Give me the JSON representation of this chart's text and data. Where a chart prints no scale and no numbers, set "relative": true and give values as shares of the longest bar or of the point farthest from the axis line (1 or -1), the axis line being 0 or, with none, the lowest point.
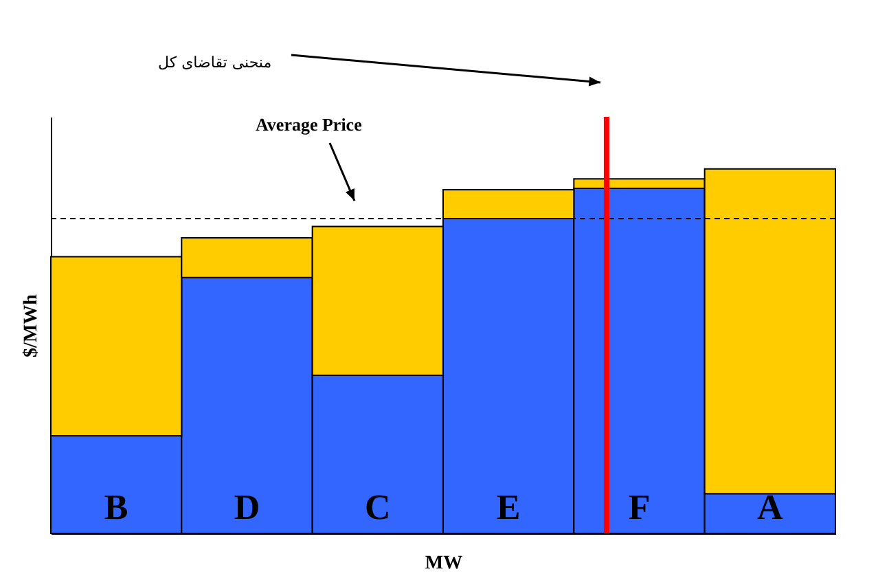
{
  "chart_data": {
    "type": "bar",
    "stacked": true,
    "relative": true,
    "xlabel": "MW",
    "ylabel": "$/MWh",
    "categories": [
      "B",
      "D",
      "C",
      "E",
      "F",
      "A"
    ],
    "series": [
      {
        "color": "#3366ff",
        "values": [
          0.268,
          0.702,
          0.434,
          0.864,
          0.947,
          0.109
        ]
      },
      {
        "color": "#ffcc00",
        "values": [
          0.491,
          0.109,
          0.408,
          0.079,
          0.026,
          0.891
        ]
      }
    ],
    "ref_lines": [
      {
        "axis": "y",
        "value": 0.864,
        "label": "Average Price",
        "color": "#000000",
        "line_style": "dashed"
      },
      {
        "axis": "x",
        "value": "F",
        "color": "#ff0000",
        "line_style": "solid"
      }
    ],
    "annotations": [
      "منحنی تقاضای کل"
    ],
    "legend": false,
    "grid": false
  }
}
